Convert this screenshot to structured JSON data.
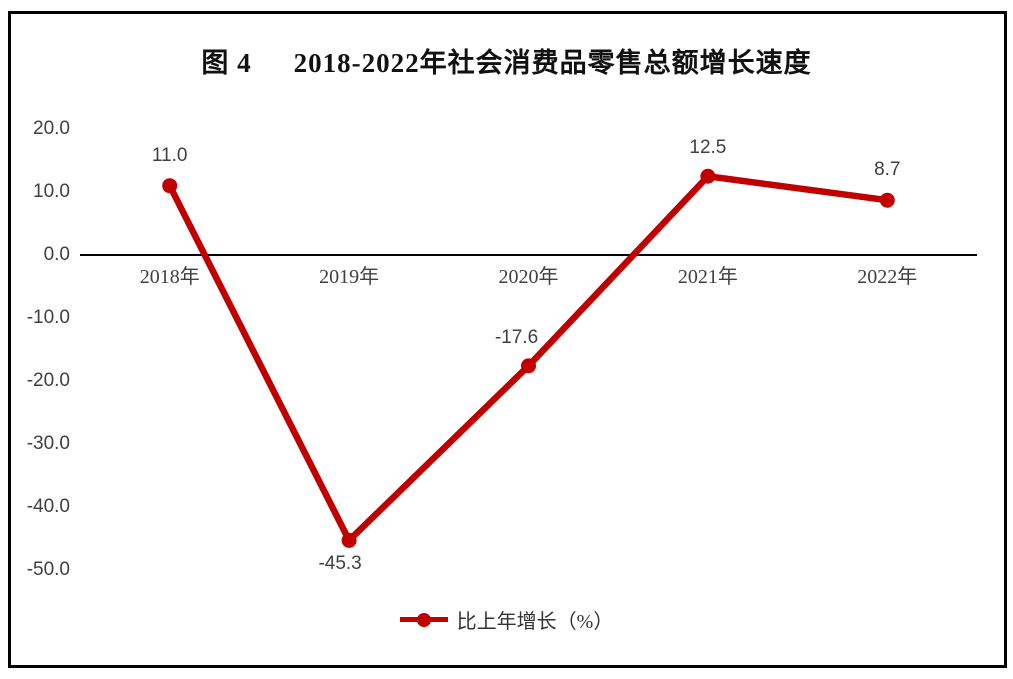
{
  "figure": {
    "label": "图 4",
    "title": "2018-2022年社会消费品零售总额增长速度"
  },
  "chart_data": {
    "type": "line",
    "title": "2018-2022年社会消费品零售总额增长速度",
    "categories": [
      "2018年",
      "2019年",
      "2020年",
      "2021年",
      "2022年"
    ],
    "series": [
      {
        "name": "比上年增长（%）",
        "values": [
          11.0,
          -45.3,
          -17.6,
          12.5,
          8.7
        ]
      }
    ],
    "point_labels": [
      "11.0",
      "-45.3",
      "-17.6",
      "12.5",
      "8.7"
    ],
    "y_ticks": [
      "20.0",
      "10.0",
      "0.0",
      "-10.0",
      "-20.0",
      "-30.0",
      "-40.0",
      "-50.0"
    ],
    "ylim": [
      -50,
      20
    ],
    "xlabel": "",
    "ylabel": "",
    "grid": false,
    "legend_position": "bottom",
    "line_color": "#C00000",
    "marker_color": "#C00000",
    "zero_line_color": "#000000",
    "label_color": "#404040"
  }
}
